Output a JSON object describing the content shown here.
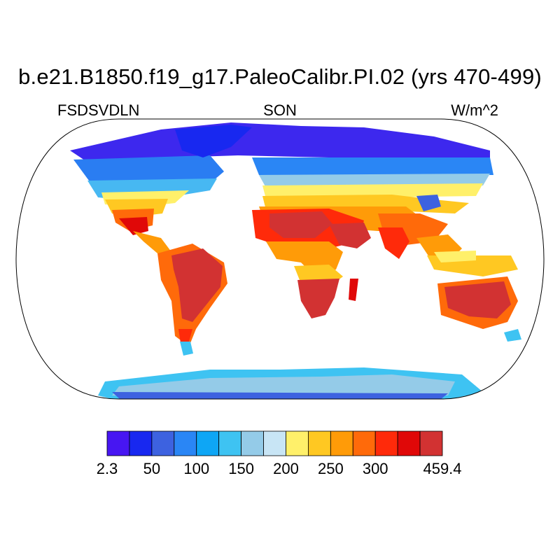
{
  "title": "b.e21.B1850.f19_g17.PaleoCalibr.PI.02 (yrs 470-499)",
  "left_string": "FSDSVDLN",
  "center_string": "SON",
  "right_string": "W/m^2",
  "projection": "Robinson",
  "colorbar": {
    "colors": [
      "#4716f2",
      "#1828f0",
      "#3d62e0",
      "#2a86f5",
      "#0ea6f5",
      "#3ec3f2",
      "#94cbe8",
      "#c8e5f5",
      "#fff06a",
      "#ffc822",
      "#ff9b08",
      "#ff6a0a",
      "#ff2a0a",
      "#e00808",
      "#d23232"
    ],
    "labels": [
      "2.3",
      "50",
      "100",
      "150",
      "200",
      "250",
      "300",
      "459.4"
    ]
  }
}
